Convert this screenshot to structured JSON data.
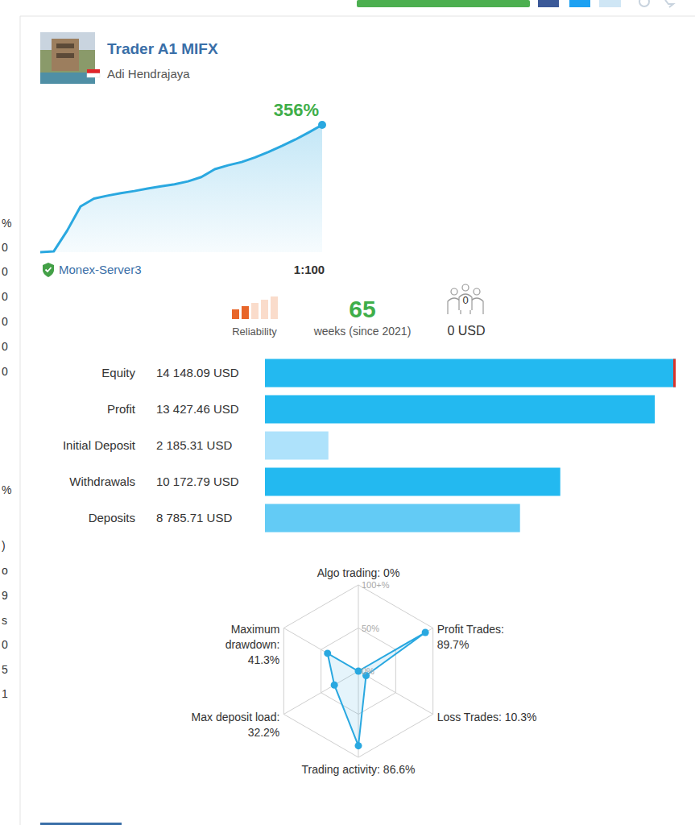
{
  "header": {
    "title": "Trader A1 MIFX",
    "author": "Adi Hendrajaya"
  },
  "server": "Monex-Server3",
  "leverage": "1:100",
  "reliability": {
    "label": "Reliability",
    "level": 2,
    "levels": 5
  },
  "weeks": {
    "value": 65,
    "label": "weeks (since 2021)"
  },
  "subscribers": {
    "count": 0,
    "funds": "0 USD"
  },
  "sidebar": [
    "%",
    "0",
    "0",
    "0",
    "0",
    "0",
    "0",
    "%",
    ")",
    "o",
    "9",
    "s",
    "0",
    "5",
    "1"
  ],
  "chart_data": [
    {
      "type": "area",
      "values": [
        0,
        2,
        60,
        128,
        150,
        158,
        165,
        171,
        178,
        184,
        190,
        198,
        210,
        232,
        243,
        252,
        265,
        280,
        297,
        315,
        335,
        356
      ],
      "ylim": [
        0,
        356
      ],
      "tick_labels": false,
      "color": "#2aa8e0",
      "annotation": "356%"
    },
    {
      "type": "bar",
      "orientation": "horizontal",
      "categories": [
        "Equity",
        "Profit",
        "Initial Deposit",
        "Withdrawals",
        "Deposits"
      ],
      "values": [
        14148.09,
        13427.46,
        2185.31,
        10172.79,
        8785.71
      ],
      "value_labels": [
        "14 148.09 USD",
        "13 427.46 USD",
        "2 185.31 USD",
        "10 172.79 USD",
        "8 785.71 USD"
      ],
      "colors": [
        "#23b9f0",
        "#23b9f0",
        "#aee2fb",
        "#23b9f0",
        "#63cbf5"
      ],
      "xlim": [
        0,
        14148.09
      ],
      "tick_labels": "y"
    },
    {
      "type": "radar",
      "values": [
        0,
        89.7,
        10.3,
        86.6,
        32.2,
        41.3
      ],
      "value_labels": [
        "Algo trading: 0%",
        "Profit Trades: 89.7%",
        "Loss Trades: 10.3%",
        "Trading activity: 86.6%",
        "Max deposit load: 32.2%",
        "Maximum drawdown: 41.3%"
      ],
      "rlim": [
        0,
        100
      ],
      "rticks": [
        {
          "value": 0,
          "label": "0%"
        },
        {
          "value": 50,
          "label": "50%"
        },
        {
          "value": 100,
          "label": "100+%"
        }
      ],
      "color": "#29a8e0"
    }
  ]
}
